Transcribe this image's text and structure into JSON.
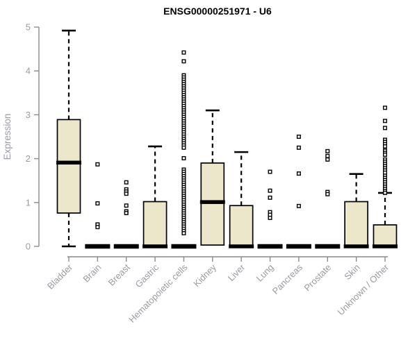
{
  "chart_data": {
    "type": "boxplot",
    "title": "ENSG00000251971 - U6",
    "xlabel": "",
    "ylabel": "Expression",
    "ylim": [
      0,
      5
    ],
    "yticks": [
      0,
      1,
      2,
      3,
      4,
      5
    ],
    "grid": false,
    "legend": null,
    "colors": {
      "box_fill": "#ECE7CB",
      "box_stroke": "#000000",
      "median": "#000000",
      "whisker": "#000000",
      "outlier_stroke": "#000000",
      "outlier_fill": "#ffffff",
      "axis_line": "#8a8a8a",
      "axis_text": "#989ba3",
      "title_color": "#000000"
    },
    "categories": [
      "Bladder",
      "Brain",
      "Breast",
      "Gastric",
      "Hematopoietic cells",
      "Kidney",
      "Liver",
      "Lung",
      "Pancreas",
      "Prostate",
      "Skin",
      "Unknown / Other"
    ],
    "series": [
      {
        "name": "Bladder",
        "whisker_low": 0,
        "q1": 0.76,
        "median": 1.91,
        "q3": 2.89,
        "whisker_high": 4.92,
        "outliers": []
      },
      {
        "name": "Brain",
        "whisker_low": 0,
        "q1": 0,
        "median": 0,
        "q3": 0,
        "whisker_high": 0,
        "outliers": [
          1.87,
          0.98,
          0.5,
          0.44
        ]
      },
      {
        "name": "Breast",
        "whisker_low": 0,
        "q1": 0,
        "median": 0,
        "q3": 0,
        "whisker_high": 0,
        "outliers": [
          1.46,
          1.3,
          1.25,
          1.2,
          0.93,
          0.8,
          0.76
        ]
      },
      {
        "name": "Gastric",
        "whisker_low": 0,
        "q1": 0,
        "median": 0,
        "q3": 1.02,
        "whisker_high": 2.28,
        "outliers": []
      },
      {
        "name": "Hematopoietic cells",
        "whisker_low": 0,
        "q1": 0,
        "median": 0,
        "q3": 0,
        "whisker_high": 0,
        "outliers": [
          4.42,
          4.22,
          3.9,
          3.85,
          3.8,
          3.75,
          3.7,
          3.65,
          3.6,
          3.55,
          3.5,
          3.45,
          3.4,
          3.35,
          3.3,
          3.25,
          3.2,
          3.15,
          3.1,
          3.05,
          3.0,
          2.95,
          2.9,
          2.85,
          2.8,
          2.75,
          2.7,
          2.65,
          2.6,
          2.55,
          2.5,
          2.45,
          2.4,
          2.35,
          2.3,
          2.25,
          2.01,
          1.75,
          1.7,
          1.65,
          1.6,
          1.55,
          1.5,
          1.45,
          1.4,
          1.35,
          1.3,
          1.25,
          1.2,
          1.15,
          1.1,
          1.05,
          1.0,
          0.95,
          0.9,
          0.85,
          0.8,
          0.75,
          0.7,
          0.65,
          0.6,
          0.55,
          0.5,
          0.45,
          0.4,
          0.35,
          0.3
        ]
      },
      {
        "name": "Kidney",
        "whisker_low": 0.03,
        "q1": 0.03,
        "median": 1.01,
        "q3": 1.9,
        "whisker_high": 3.1,
        "outliers": []
      },
      {
        "name": "Liver",
        "whisker_low": 0,
        "q1": 0,
        "median": 0,
        "q3": 0.93,
        "whisker_high": 2.15,
        "outliers": []
      },
      {
        "name": "Lung",
        "whisker_low": 0,
        "q1": 0,
        "median": 0,
        "q3": 0,
        "whisker_high": 0,
        "outliers": [
          1.7,
          1.27,
          1.11,
          0.78,
          0.72,
          0.65
        ]
      },
      {
        "name": "Pancreas",
        "whisker_low": 0,
        "q1": 0,
        "median": 0,
        "q3": 0,
        "whisker_high": 0,
        "outliers": [
          2.5,
          2.25,
          1.66,
          0.92
        ]
      },
      {
        "name": "Prostate",
        "whisker_low": 0,
        "q1": 0,
        "median": 0,
        "q3": 0,
        "whisker_high": 0,
        "outliers": [
          2.17,
          2.06,
          1.98,
          1.24,
          1.19
        ]
      },
      {
        "name": "Skin",
        "whisker_low": 0,
        "q1": 0,
        "median": 0,
        "q3": 1.02,
        "whisker_high": 1.65,
        "outliers": []
      },
      {
        "name": "Unknown / Other",
        "whisker_low": 0,
        "q1": 0,
        "median": 0,
        "q3": 0.49,
        "whisker_high": 1.22,
        "outliers": [
          3.16,
          2.86,
          2.7,
          2.43,
          2.38,
          2.33,
          2.28,
          2.18,
          2.13,
          2.09,
          1.98,
          1.93,
          1.88,
          1.83,
          1.78,
          1.73,
          1.68,
          1.61,
          1.56,
          1.51,
          1.46,
          1.41,
          1.36,
          1.31,
          1.26,
          1.22
        ]
      }
    ]
  }
}
